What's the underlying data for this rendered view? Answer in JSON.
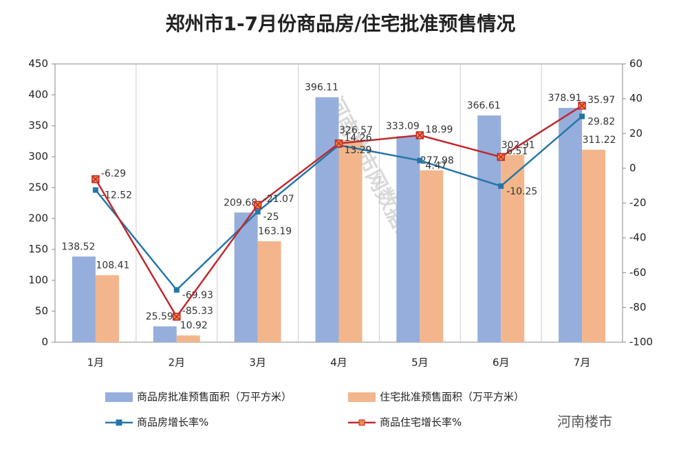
{
  "chart_data": {
    "type": "bar-line",
    "title": "郑州市1-7月份商品房/住宅批准预售情况",
    "categories": [
      "1月",
      "2月",
      "3月",
      "4月",
      "5月",
      "6月",
      "7月"
    ],
    "series": [
      {
        "name": "商品房批准预售面积（万平方米）",
        "type": "bar",
        "color": "#95aedc",
        "values": [
          138.52,
          25.59,
          209.68,
          396.11,
          333.09,
          366.61,
          378.91
        ]
      },
      {
        "name": "住宅批准预售面积（万平方米）",
        "type": "bar",
        "color": "#f3b68c",
        "values": [
          108.41,
          10.92,
          163.19,
          326.57,
          277.98,
          302.91,
          311.22
        ]
      },
      {
        "name": "商品房增长率%",
        "type": "line",
        "axis": "y2",
        "color": "#2576a8",
        "values": [
          -12.52,
          -69.93,
          -25,
          13.29,
          4.47,
          -10.25,
          29.82
        ]
      },
      {
        "name": "商品住宅增长率%",
        "type": "line",
        "axis": "y2",
        "color": "#c0282d",
        "values": [
          -6.29,
          -85.33,
          -21.07,
          14.26,
          18.99,
          6.51,
          35.97
        ]
      }
    ],
    "ylim": [
      0,
      450
    ],
    "yticks": [
      0,
      50,
      100,
      150,
      200,
      250,
      300,
      350,
      400,
      450
    ],
    "y2lim": [
      -100,
      60
    ],
    "y2ticks": [
      -100,
      -80,
      -60,
      -40,
      -20,
      0,
      20,
      40,
      60
    ],
    "watermark": "河南楼市网数据研究中心",
    "source": "河南楼市"
  }
}
